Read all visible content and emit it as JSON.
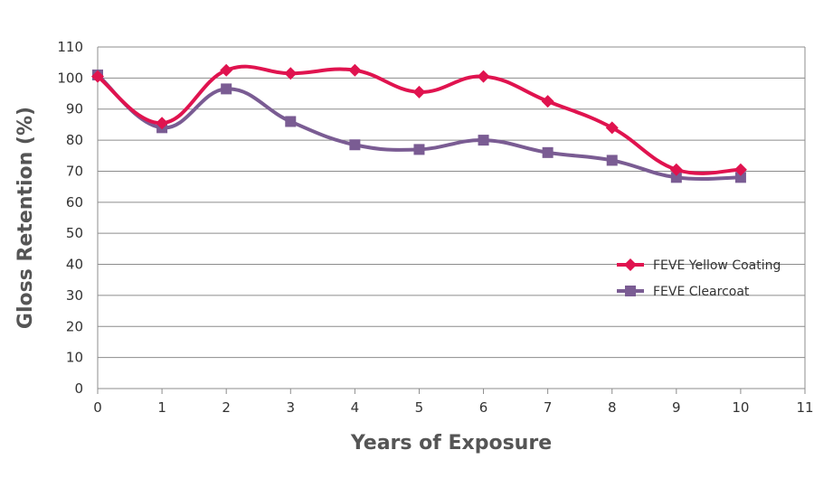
{
  "chart_data": {
    "type": "line",
    "title": "",
    "xlabel": "Years of Exposure",
    "ylabel": "Gloss Retention (%)",
    "xlim": [
      0,
      11
    ],
    "ylim": [
      0,
      110
    ],
    "x_ticks": [
      0,
      1,
      2,
      3,
      4,
      5,
      6,
      7,
      8,
      9,
      10,
      11
    ],
    "y_ticks": [
      0,
      10,
      20,
      30,
      40,
      50,
      60,
      70,
      80,
      90,
      100,
      110
    ],
    "grid": "horizontal",
    "legend_position": "right",
    "x": [
      0,
      1,
      2,
      3,
      4,
      5,
      6,
      7,
      8,
      9,
      10
    ],
    "series": [
      {
        "name": "FEVE Yellow Coating",
        "color": "#e0134f",
        "marker": "diamond",
        "values": [
          100.5,
          85.5,
          102.5,
          101.5,
          102.5,
          95.5,
          100.5,
          92.5,
          84,
          70.5,
          70.5
        ]
      },
      {
        "name": "FEVE Clearcoat",
        "color": "#7a5c93",
        "marker": "square",
        "values": [
          101,
          84,
          96.5,
          86,
          78.5,
          77,
          80,
          76,
          73.5,
          68,
          68
        ]
      }
    ]
  }
}
